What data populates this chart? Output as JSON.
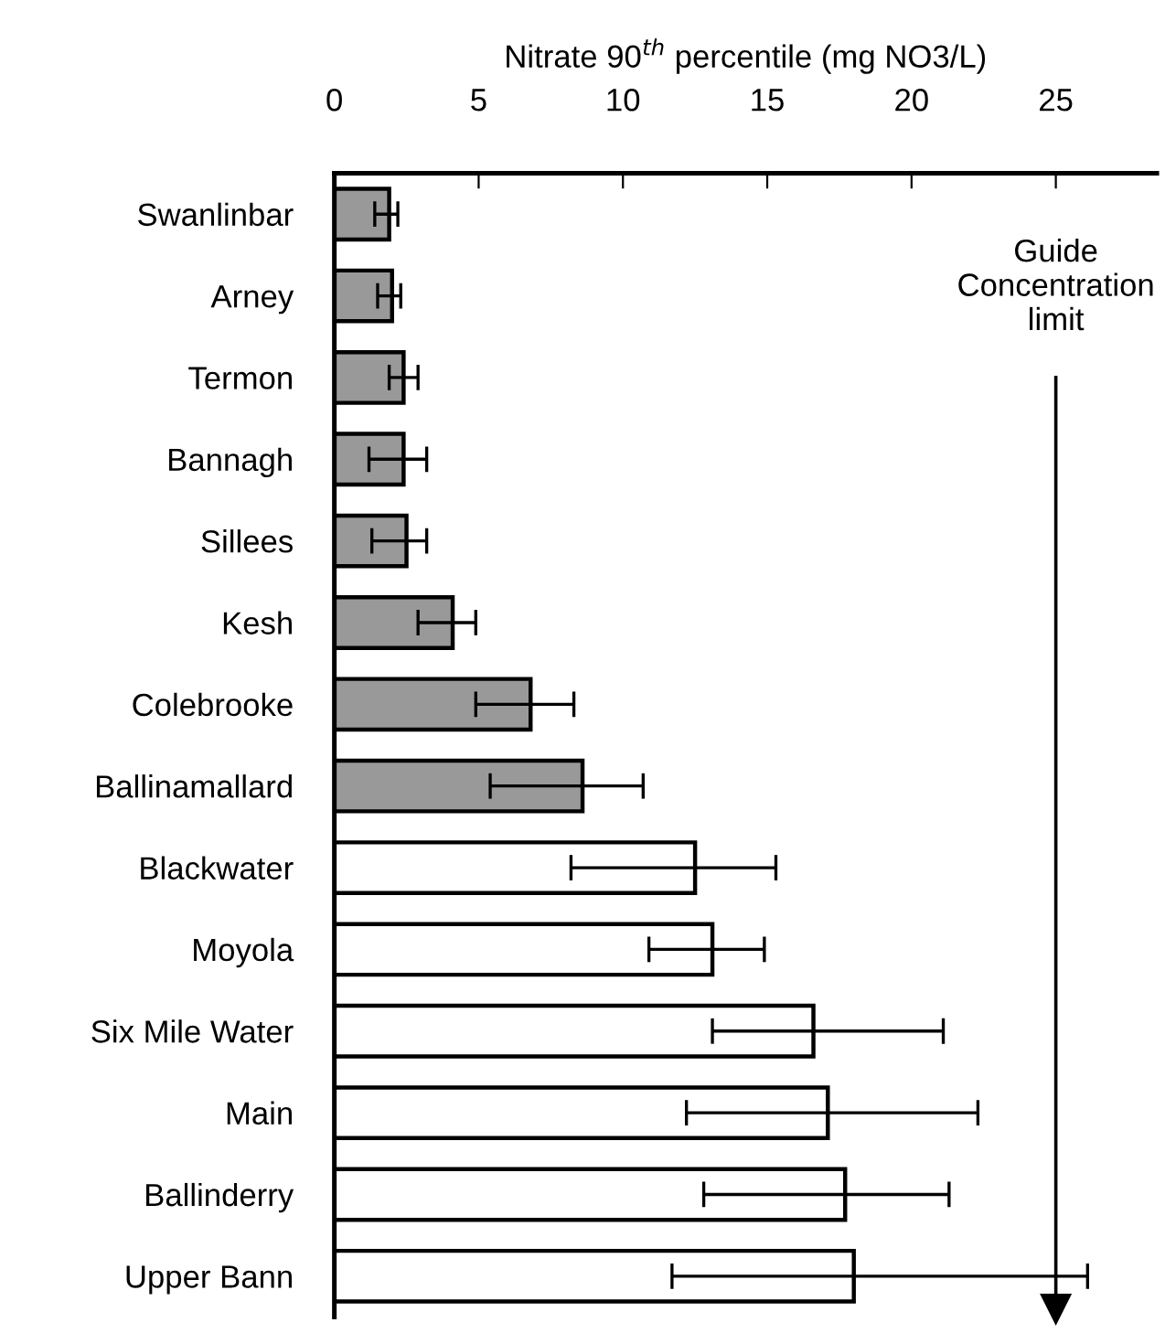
{
  "chart_data": {
    "type": "bar",
    "orientation": "horizontal",
    "xlabel": "Nitrate 90$^{th}$ percentile (mg NO3/L)",
    "categories": [
      "Swanlinbar",
      "Arney",
      "Termon",
      "Bannagh",
      "Sillees",
      "Kesh",
      "Colebrooke",
      "Ballinamallard",
      "Blackwater",
      "Moyola",
      "Six Mile Water",
      "Main",
      "Ballinderry",
      "Upper Bann"
    ],
    "values": [
      1.9,
      2.0,
      2.4,
      2.4,
      2.5,
      4.1,
      6.8,
      8.6,
      12.5,
      13.1,
      16.6,
      17.1,
      17.7,
      18.0
    ],
    "errors": [
      [
        1.4,
        2.2
      ],
      [
        1.5,
        2.3
      ],
      [
        1.9,
        2.9
      ],
      [
        1.2,
        3.2
      ],
      [
        1.3,
        3.2
      ],
      [
        2.9,
        4.9
      ],
      [
        4.9,
        8.3
      ],
      [
        5.4,
        10.7
      ],
      [
        8.2,
        15.3
      ],
      [
        10.9,
        14.9
      ],
      [
        13.1,
        21.1
      ],
      [
        12.2,
        22.3
      ],
      [
        12.8,
        21.3
      ],
      [
        11.7,
        26.1
      ]
    ],
    "colors": [
      "#999999",
      "#999999",
      "#999999",
      "#999999",
      "#999999",
      "#999999",
      "#999999",
      "#999999",
      "#ffffff",
      "#ffffff",
      "#ffffff",
      "#ffffff",
      "#ffffff",
      "#ffffff"
    ],
    "xlim": [
      0,
      28.5
    ],
    "xticks": [
      0,
      5,
      10,
      15,
      20,
      25
    ],
    "ref_lines": [
      {
        "axis": "x",
        "value": 25,
        "label": "Guide\nConcentration\nlimit",
        "color": "#000000"
      }
    ],
    "grid": false,
    "legend": false
  }
}
